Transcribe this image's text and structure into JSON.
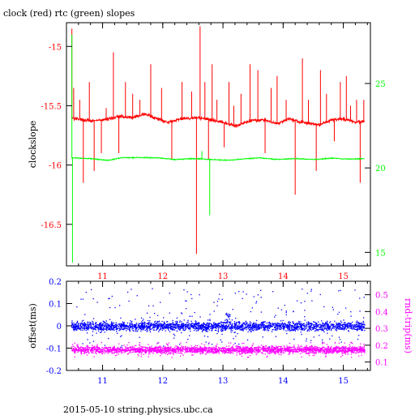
{
  "page": {
    "title": "clock (red) rtc (green) slopes",
    "footer": "2015-05-10 string.physics.ubc.ca"
  },
  "chart_data": [
    {
      "type": "line",
      "panel": "top",
      "ylabel": "clockslope",
      "xlim": [
        10.4,
        15.45
      ],
      "x_ticks": [
        11,
        12,
        13,
        14,
        15
      ],
      "x_tick_labels": [
        "11",
        "12",
        "13",
        "14",
        "15"
      ],
      "ylim_left": [
        -16.85,
        -14.8
      ],
      "y_ticks_left": [
        -15,
        -15.5,
        -16,
        -16.5
      ],
      "y_tick_labels_left": [
        "-15",
        "-15.5",
        "-16",
        "-16.5"
      ],
      "ylim_right": [
        14.2,
        28.6
      ],
      "y_ticks_right": [
        15,
        20,
        25
      ],
      "y_tick_labels_right": [
        "15",
        "20",
        "25"
      ],
      "grid": false,
      "series": [
        {
          "axis": "left",
          "color": "#ff0000",
          "baseline": [
            [
              10.48,
              -15.6
            ],
            [
              10.8,
              -15.63
            ],
            [
              11.0,
              -15.62
            ],
            [
              11.3,
              -15.59
            ],
            [
              11.5,
              -15.6
            ],
            [
              11.7,
              -15.57
            ],
            [
              11.9,
              -15.61
            ],
            [
              12.1,
              -15.64
            ],
            [
              12.3,
              -15.61
            ],
            [
              12.6,
              -15.6
            ],
            [
              12.9,
              -15.63
            ],
            [
              13.2,
              -15.67
            ],
            [
              13.5,
              -15.62
            ],
            [
              13.7,
              -15.62
            ],
            [
              13.9,
              -15.65
            ],
            [
              14.1,
              -15.61
            ],
            [
              14.3,
              -15.64
            ],
            [
              14.6,
              -15.66
            ],
            [
              14.8,
              -15.62
            ],
            [
              15.0,
              -15.61
            ],
            [
              15.2,
              -15.64
            ],
            [
              15.35,
              -15.63
            ]
          ],
          "spikes": [
            [
              10.49,
              -14.85
            ],
            [
              10.52,
              -15.35
            ],
            [
              10.62,
              -15.45
            ],
            [
              10.68,
              -16.15
            ],
            [
              10.78,
              -15.3
            ],
            [
              10.86,
              -16.05
            ],
            [
              10.98,
              -15.9
            ],
            [
              11.06,
              -15.52
            ],
            [
              11.18,
              -15.05
            ],
            [
              11.27,
              -15.9
            ],
            [
              11.38,
              -15.3
            ],
            [
              11.5,
              -15.4
            ],
            [
              11.62,
              -15.45
            ],
            [
              11.8,
              -15.15
            ],
            [
              11.98,
              -15.35
            ],
            [
              12.15,
              -15.95
            ],
            [
              12.32,
              -15.3
            ],
            [
              12.48,
              -15.38
            ],
            [
              12.56,
              -16.75
            ],
            [
              12.62,
              -14.83
            ],
            [
              12.7,
              -15.3
            ],
            [
              12.76,
              -15.95
            ],
            [
              12.82,
              -15.15
            ],
            [
              12.9,
              -15.45
            ],
            [
              13.02,
              -15.85
            ],
            [
              13.1,
              -15.3
            ],
            [
              13.18,
              -15.5
            ],
            [
              13.3,
              -15.4
            ],
            [
              13.45,
              -15.15
            ],
            [
              13.58,
              -15.2
            ],
            [
              13.7,
              -15.9
            ],
            [
              13.8,
              -15.35
            ],
            [
              13.9,
              -15.25
            ],
            [
              14.05,
              -15.45
            ],
            [
              14.2,
              -16.25
            ],
            [
              14.32,
              -15.1
            ],
            [
              14.42,
              -15.45
            ],
            [
              14.55,
              -16.05
            ],
            [
              14.62,
              -15.2
            ],
            [
              14.72,
              -15.4
            ],
            [
              14.85,
              -15.8
            ],
            [
              14.95,
              -15.3
            ],
            [
              15.05,
              -15.25
            ],
            [
              15.12,
              -15.5
            ],
            [
              15.22,
              -15.45
            ],
            [
              15.28,
              -16.15
            ],
            [
              15.34,
              -15.45
            ]
          ]
        },
        {
          "axis": "right",
          "color": "#00ff00",
          "baseline": [
            [
              10.48,
              20.6
            ],
            [
              10.8,
              20.55
            ],
            [
              11.1,
              20.45
            ],
            [
              11.3,
              20.6
            ],
            [
              11.6,
              20.62
            ],
            [
              11.9,
              20.6
            ],
            [
              12.2,
              20.5
            ],
            [
              12.5,
              20.55
            ],
            [
              12.8,
              20.5
            ],
            [
              13.1,
              20.45
            ],
            [
              13.4,
              20.55
            ],
            [
              13.6,
              20.6
            ],
            [
              13.9,
              20.5
            ],
            [
              14.2,
              20.55
            ],
            [
              14.5,
              20.5
            ],
            [
              14.8,
              20.58
            ],
            [
              15.1,
              20.52
            ],
            [
              15.35,
              20.55
            ]
          ],
          "spikes": [
            [
              10.49,
              27.9
            ],
            [
              10.5,
              14.4
            ],
            [
              12.65,
              21.0
            ],
            [
              12.78,
              17.2
            ]
          ]
        }
      ]
    },
    {
      "type": "scatter",
      "panel": "bottom",
      "ylabel": "offset(ms)",
      "ylabel_right": "rnd-trip(ms)",
      "xlim": [
        10.4,
        15.45
      ],
      "x_ticks": [
        11,
        12,
        13,
        14,
        15
      ],
      "x_tick_labels": [
        "11",
        "12",
        "13",
        "14",
        "15"
      ],
      "ylim_left": [
        -0.2,
        0.2
      ],
      "y_ticks_left": [
        0.2,
        0.1,
        0,
        -0.1,
        -0.2
      ],
      "y_tick_labels_left": [
        "0.2",
        "0.1",
        "0",
        "-0.1",
        "-0.2"
      ],
      "ylim_right": [
        0.05,
        0.58
      ],
      "y_ticks_right": [
        0.5,
        0.4,
        0.3,
        0.2,
        0.1
      ],
      "y_tick_labels_right": [
        "0.5",
        "0.4",
        "0.3",
        "0.2",
        "0.1"
      ],
      "grid": false,
      "series": [
        {
          "axis": "left",
          "color": "#0000ff",
          "x_range": [
            10.48,
            15.35
          ],
          "center": 0.0,
          "band_halfwidth": 0.025,
          "outlier_range": [
            -0.1,
            0.17
          ],
          "feature": {
            "x": 13.08,
            "peak": 0.06
          }
        },
        {
          "axis": "right",
          "color": "#ff00ff",
          "x_range": [
            10.48,
            15.35
          ],
          "center": 0.175,
          "band_halfwidth": 0.025,
          "outlier_range": [
            0.13,
            0.22
          ]
        }
      ]
    }
  ]
}
